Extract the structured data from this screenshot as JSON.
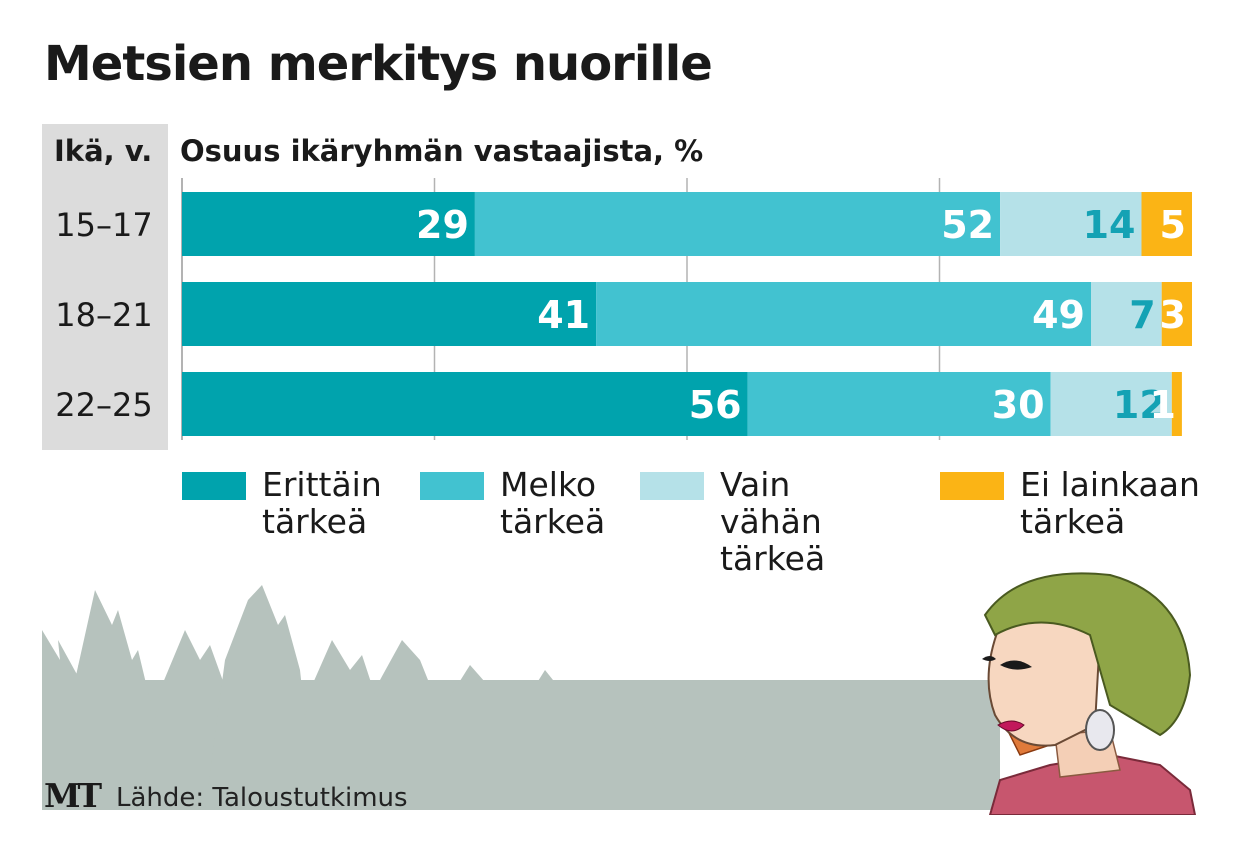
{
  "title": "Metsien merkitys nuorille",
  "age_header": "Ikä, v.",
  "subtitle": "Osuus ikäryhmän vastaajista, %",
  "source": "Lähde: Taloustutkimus",
  "logo": "MT",
  "colors": {
    "erittain": "#00a3ad",
    "melko": "#42c2d0",
    "vain_vahan": "#b5e1e8",
    "ei_lainkaan": "#fbb415",
    "label_light": "#ffffff",
    "label_dark": "#14a2b4",
    "gridline": "#b3b3b3",
    "trees": "#b6c2bd"
  },
  "legend": [
    {
      "line1": "Erittäin",
      "line2": "tärkeä"
    },
    {
      "line1": "Melko",
      "line2": "tärkeä"
    },
    {
      "line1": "Vain vähän",
      "line2": "tärkeä"
    },
    {
      "line1": "Ei lainkaan",
      "line2": "tärkeä"
    }
  ],
  "chart_data": {
    "type": "bar",
    "orientation": "horizontal",
    "stacked": true,
    "categories": [
      "15–17",
      "18–21",
      "22–25"
    ],
    "series": [
      {
        "name": "Erittäin tärkeä",
        "values": [
          29,
          41,
          56
        ]
      },
      {
        "name": "Melko tärkeä",
        "values": [
          52,
          49,
          30
        ]
      },
      {
        "name": "Vain vähän tärkeä",
        "values": [
          14,
          7,
          12
        ]
      },
      {
        "name": "Ei lainkaan tärkeä",
        "values": [
          5,
          3,
          1
        ]
      }
    ],
    "xlim": [
      0,
      100
    ],
    "grid": true,
    "legend_position": "bottom"
  }
}
